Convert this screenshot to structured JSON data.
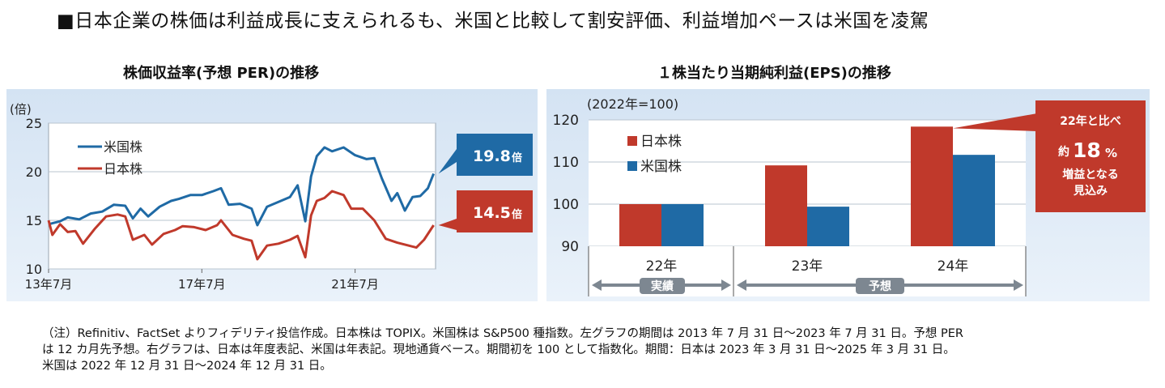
{
  "title": "■日本企業の株価は利益成長に支えられるも、米国と比較して割安評価、利益増加ペースは米国を凌駕",
  "colors": {
    "us": "#1f6aa5",
    "jp": "#c0392b",
    "panel_bg": "#dfeaf6",
    "grid": "#b9c4cf"
  },
  "left_chart": {
    "title": "株価収益率(予想 PER)の推移",
    "unit_label": "(倍)",
    "chart_data": {
      "type": "line",
      "title": "株価収益率(予想 PER)の推移",
      "ylabel": "(倍)",
      "ylim": [
        10,
        25
      ],
      "yticks": [
        "25",
        "20",
        "15",
        "10"
      ],
      "xlim": [
        2013.5,
        2023.6
      ],
      "xticks": [
        {
          "label": "13年7月",
          "year": 2013.5
        },
        {
          "label": "17年7月",
          "year": 2017.5
        },
        {
          "label": "21年7月",
          "year": 2021.5
        }
      ],
      "series": [
        {
          "name": "米国株",
          "key": "us",
          "points": [
            [
              2013.5,
              14.6
            ],
            [
              2013.8,
              14.9
            ],
            [
              2014.0,
              15.3
            ],
            [
              2014.3,
              15.1
            ],
            [
              2014.6,
              15.7
            ],
            [
              2014.9,
              15.9
            ],
            [
              2015.2,
              16.6
            ],
            [
              2015.5,
              16.5
            ],
            [
              2015.7,
              15.2
            ],
            [
              2015.9,
              16.2
            ],
            [
              2016.1,
              15.4
            ],
            [
              2016.4,
              16.4
            ],
            [
              2016.7,
              17.0
            ],
            [
              2016.9,
              17.2
            ],
            [
              2017.2,
              17.6
            ],
            [
              2017.5,
              17.6
            ],
            [
              2017.8,
              18.0
            ],
            [
              2018.0,
              18.3
            ],
            [
              2018.2,
              16.6
            ],
            [
              2018.5,
              16.7
            ],
            [
              2018.8,
              16.2
            ],
            [
              2018.95,
              14.5
            ],
            [
              2019.2,
              16.4
            ],
            [
              2019.5,
              16.9
            ],
            [
              2019.8,
              17.4
            ],
            [
              2020.0,
              18.6
            ],
            [
              2020.2,
              14.9
            ],
            [
              2020.35,
              19.5
            ],
            [
              2020.5,
              21.6
            ],
            [
              2020.7,
              22.5
            ],
            [
              2020.9,
              22.1
            ],
            [
              2021.2,
              22.5
            ],
            [
              2021.5,
              21.7
            ],
            [
              2021.8,
              21.3
            ],
            [
              2022.0,
              21.4
            ],
            [
              2022.2,
              19.3
            ],
            [
              2022.45,
              17.0
            ],
            [
              2022.6,
              17.8
            ],
            [
              2022.8,
              16.0
            ],
            [
              2023.0,
              17.4
            ],
            [
              2023.2,
              17.5
            ],
            [
              2023.4,
              18.3
            ],
            [
              2023.55,
              19.8
            ]
          ]
        },
        {
          "name": "日本株",
          "key": "jp",
          "points": [
            [
              2013.5,
              15.0
            ],
            [
              2013.6,
              13.5
            ],
            [
              2013.8,
              14.6
            ],
            [
              2014.0,
              13.8
            ],
            [
              2014.2,
              13.9
            ],
            [
              2014.4,
              12.6
            ],
            [
              2014.7,
              14.1
            ],
            [
              2015.0,
              15.4
            ],
            [
              2015.3,
              15.6
            ],
            [
              2015.5,
              15.4
            ],
            [
              2015.7,
              13.0
            ],
            [
              2016.0,
              13.5
            ],
            [
              2016.2,
              12.5
            ],
            [
              2016.5,
              13.6
            ],
            [
              2016.8,
              14.0
            ],
            [
              2017.0,
              14.4
            ],
            [
              2017.3,
              14.3
            ],
            [
              2017.6,
              14.0
            ],
            [
              2017.9,
              14.5
            ],
            [
              2018.0,
              15.0
            ],
            [
              2018.3,
              13.5
            ],
            [
              2018.6,
              13.1
            ],
            [
              2018.8,
              12.9
            ],
            [
              2018.95,
              11.0
            ],
            [
              2019.2,
              12.4
            ],
            [
              2019.5,
              12.6
            ],
            [
              2019.8,
              13.0
            ],
            [
              2020.0,
              13.4
            ],
            [
              2020.2,
              11.2
            ],
            [
              2020.35,
              15.5
            ],
            [
              2020.5,
              17.0
            ],
            [
              2020.7,
              17.3
            ],
            [
              2020.9,
              18.0
            ],
            [
              2021.2,
              17.6
            ],
            [
              2021.4,
              16.2
            ],
            [
              2021.7,
              16.2
            ],
            [
              2022.0,
              15.0
            ],
            [
              2022.3,
              13.1
            ],
            [
              2022.6,
              12.7
            ],
            [
              2022.9,
              12.4
            ],
            [
              2023.1,
              12.2
            ],
            [
              2023.3,
              13.0
            ],
            [
              2023.55,
              14.5
            ]
          ]
        }
      ],
      "callouts": [
        {
          "series": "米国株",
          "value": "19.8",
          "unit": "倍"
        },
        {
          "series": "日本株",
          "value": "14.5",
          "unit": "倍"
        }
      ]
    }
  },
  "right_chart": {
    "title": "１株当たり当期純利益(EPS)の推移",
    "base_label": "(2022年=100)",
    "chart_data": {
      "type": "bar",
      "title": "１株当たり当期純利益(EPS)の推移",
      "ylabel": "(2022年=100)",
      "ylim": [
        90,
        120
      ],
      "yticks": [
        "120",
        "110",
        "100",
        "90"
      ],
      "categories": [
        "22年",
        "23年",
        "24年"
      ],
      "series": [
        {
          "name": "日本株",
          "key": "jp",
          "values": [
            100,
            109.2,
            118.4
          ]
        },
        {
          "name": "米国株",
          "key": "us",
          "values": [
            100,
            99.4,
            111.7
          ]
        }
      ],
      "periods": [
        {
          "label": "実績"
        },
        {
          "label": "予想"
        }
      ],
      "annotation": {
        "line1": "22年と比べ",
        "prefix": "約",
        "number": "18",
        "suffix": "%",
        "line3": "増益となる",
        "line4": "見込み"
      }
    }
  },
  "note": {
    "line1": "（注）Refinitiv、FactSet よりフィデリティ投信作成。日本株は TOPIX。米国株は S&P500 種指数。左グラフの期間は 2013 年 7 月 31 日～2023 年 7 月 31 日。予想 PER",
    "line2": "は 12 カ月先予想。右グラフは、日本は年度表記、米国は年表記。現地通貨ベース。期間初を 100 として指数化。期間：日本は 2023 年 3 月 31 日～2025 年 3 月 31 日。",
    "line3": "米国は 2022 年 12 月 31 日～2024 年 12 月 31 日。"
  }
}
